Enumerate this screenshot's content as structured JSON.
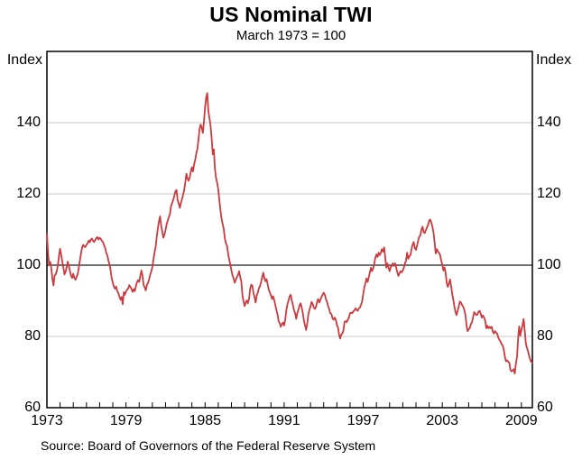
{
  "chart_data": {
    "type": "line",
    "title": "US Nominal TWI",
    "subtitle": "March 1973 = 100",
    "unit_label": "Index",
    "source": "Source: Board of Governors of the Federal Reserve System",
    "x_axis": {
      "start_year": 1973,
      "tick_interval_years": 1,
      "label_years": [
        1973,
        1979,
        1985,
        1991,
        1997,
        2003,
        2009
      ]
    },
    "y_axis": {
      "min": 60,
      "max": 160,
      "ticks": [
        140,
        120,
        100,
        80,
        60
      ],
      "reference_line": 100
    },
    "colors": {
      "line": "#CB3A3E",
      "grid": "#C5C9CE",
      "reference": "#1A1A1A",
      "frame": "#000000"
    },
    "series": [
      {
        "name": "US Nominal TWI",
        "frequency": "monthly",
        "start_year": 1973,
        "start_month": 1,
        "values": [
          108.8,
          103.6,
          100.0,
          100.9,
          99.0,
          96.1,
          94.3,
          97.1,
          97.4,
          98.4,
          100.1,
          102.7,
          104.6,
          102.9,
          101.1,
          99.2,
          97.4,
          98.2,
          99.4,
          101.0,
          99.8,
          98.3,
          97.0,
          96.4,
          97.6,
          96.4,
          95.9,
          96.7,
          97.5,
          99.2,
          101.3,
          103.1,
          105.0,
          105.7,
          105.2,
          105.1,
          105.7,
          106.1,
          106.9,
          106.4,
          107.2,
          107.5,
          106.8,
          106.5,
          107.1,
          107.6,
          107.9,
          107.2,
          107.7,
          107.4,
          106.8,
          106.5,
          105.6,
          104.9,
          103.5,
          102.8,
          101.3,
          100.2,
          98.5,
          96.3,
          95.1,
          94.0,
          93.4,
          94.0,
          92.8,
          92.2,
          91.2,
          90.3,
          91.1,
          89.0,
          92.4,
          91.7,
          92.6,
          93.1,
          93.5,
          94.4,
          93.9,
          93.4,
          92.5,
          93.3,
          92.7,
          94.1,
          95.2,
          95.8,
          95.3,
          97.0,
          98.5,
          97.1,
          94.5,
          93.8,
          92.9,
          94.4,
          95.0,
          96.0,
          97.3,
          98.2,
          99.5,
          101.7,
          103.5,
          105.2,
          107.9,
          110.2,
          112.3,
          113.7,
          111.1,
          109.5,
          107.7,
          108.5,
          109.9,
          111.5,
          112.5,
          113.5,
          114.3,
          116.5,
          117.5,
          118.3,
          119.5,
          120.7,
          121.1,
          118.3,
          117.3,
          116.1,
          117.5,
          118.5,
          119.7,
          121.1,
          123.3,
          125.7,
          124.3,
          123.7,
          124.5,
          126.3,
          127.5,
          126.3,
          128.3,
          129.5,
          131.3,
          132.7,
          135.3,
          138.3,
          139.5,
          138.5,
          137.1,
          140.5,
          144.3,
          147.1,
          148.3,
          143.3,
          141.3,
          139.1,
          135.5,
          131.1,
          132.5,
          127.1,
          124.5,
          123.1,
          121.3,
          118.3,
          115.5,
          113.1,
          111.5,
          110.1,
          107.5,
          106.1,
          105.5,
          103.3,
          101.5,
          100.1,
          98.5,
          97.1,
          96.3,
          95.1,
          95.9,
          96.7,
          97.3,
          98.3,
          96.7,
          95.5,
          91.5,
          89.9,
          88.5,
          89.5,
          90.1,
          89.3,
          90.5,
          93.3,
          94.5,
          94.3,
          92.3,
          91.1,
          89.5,
          91.5,
          92.3,
          93.5,
          94.1,
          95.3,
          96.7,
          97.9,
          96.3,
          95.5,
          96.1,
          94.5,
          93.1,
          92.3,
          91.5,
          90.5,
          91.3,
          90.1,
          88.7,
          87.3,
          86.1,
          84.3,
          83.7,
          82.7,
          83.5,
          83.9,
          83.1,
          84.7,
          87.3,
          89.1,
          90.1,
          91.3,
          91.7,
          90.1,
          88.7,
          87.3,
          86.5,
          84.9,
          86.5,
          87.5,
          88.7,
          89.3,
          88.1,
          86.5,
          84.5,
          83.1,
          81.8,
          83.7,
          86.1,
          87.5,
          88.3,
          89.7,
          89.1,
          88.1,
          87.7,
          88.3,
          89.7,
          90.5,
          89.5,
          90.3,
          91.1,
          91.7,
          92.3,
          91.7,
          90.5,
          89.7,
          88.5,
          87.7,
          86.5,
          86.3,
          85.1,
          84.7,
          85.3,
          84.7,
          83.3,
          82.5,
          80.5,
          79.4,
          80.5,
          80.8,
          81.7,
          84.1,
          84.3,
          84.0,
          84.7,
          85.3,
          86.5,
          86.7,
          86.5,
          87.1,
          87.3,
          87.9,
          87.5,
          87.2,
          87.9,
          88.1,
          88.9,
          89.8,
          92.0,
          93.8,
          95.0,
          96.3,
          95.3,
          96.5,
          98.0,
          99.3,
          98.3,
          99.0,
          100.3,
          102.0,
          103.0,
          102.3,
          103.5,
          102.8,
          103.5,
          104.5,
          103.8,
          105.0,
          102.3,
          99.3,
          100.5,
          99.3,
          98.3,
          99.5,
          99.8,
          100.5,
          99.8,
          100.5,
          99.3,
          98.0,
          97.0,
          97.7,
          98.3,
          98.0,
          98.5,
          99.3,
          100.5,
          101.3,
          103.5,
          101.8,
          102.5,
          102.8,
          104.5,
          105.8,
          106.5,
          104.8,
          104.3,
          105.5,
          106.8,
          108.0,
          108.3,
          110.0,
          110.8,
          109.3,
          109.0,
          109.8,
          110.5,
          111.3,
          112.5,
          112.8,
          112.0,
          110.8,
          109.0,
          106.3,
          103.3,
          104.5,
          103.8,
          103.5,
          102.8,
          101.3,
          100.0,
          98.5,
          99.4,
          98.0,
          95.0,
          93.9,
          94.8,
          96.0,
          94.2,
          92.0,
          90.3,
          88.4,
          86.8,
          86.0,
          87.2,
          88.4,
          89.8,
          89.5,
          88.8,
          88.4,
          87.5,
          86.0,
          83.2,
          81.5,
          82.0,
          82.3,
          83.4,
          84.0,
          85.4,
          86.8,
          86.4,
          86.0,
          86.1,
          87.0,
          87.2,
          86.3,
          85.3,
          85.9,
          85.3,
          84.5,
          82.3,
          83.0,
          82.3,
          82.7,
          82.3,
          82.7,
          81.3,
          80.8,
          81.5,
          81.1,
          80.8,
          79.6,
          79.0,
          78.6,
          77.8,
          77.5,
          76.2,
          74.2,
          73.0,
          73.3,
          72.9,
          72.6,
          70.6,
          70.2,
          70.4,
          70.8,
          69.6,
          72.3,
          74.3,
          79.4,
          82.8,
          80.2,
          81.8,
          83.0,
          84.9,
          81.8,
          78.2,
          76.8,
          76.0,
          74.6,
          73.5,
          72.8,
          72.6
        ]
      }
    ]
  }
}
